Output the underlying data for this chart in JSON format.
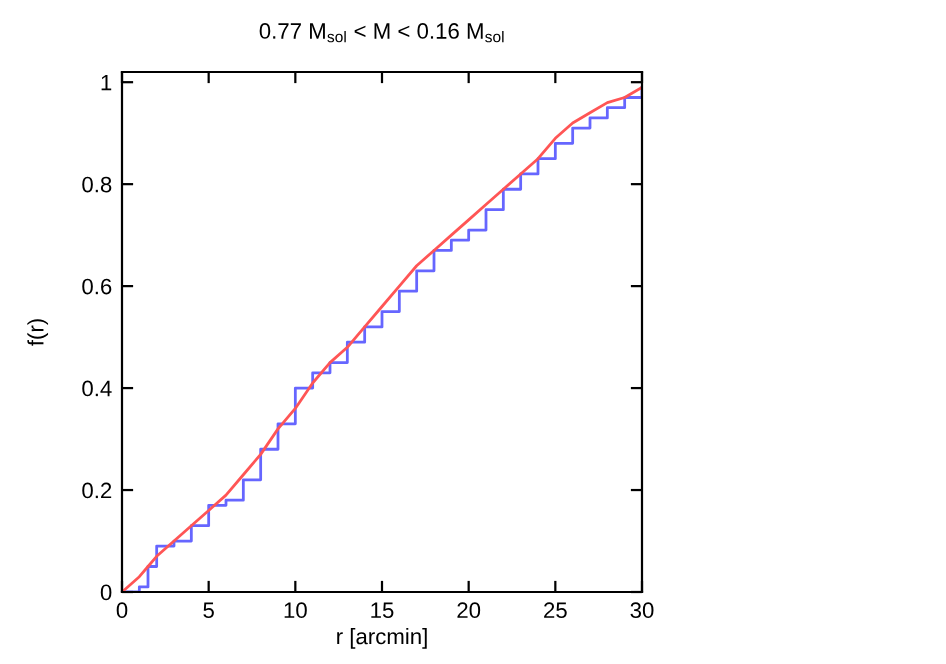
{
  "chart_data": {
    "type": "line",
    "title": "0.77 M$_{sol}$ < M < 0.16 M$_{sol}$",
    "xlabel": "r [arcmin]",
    "ylabel": "f(r)",
    "x": [
      0,
      1,
      1.5,
      2,
      3,
      4,
      5,
      6,
      7,
      8,
      9,
      10,
      11,
      12,
      13,
      14,
      15,
      16,
      17,
      18,
      19,
      20,
      21,
      22,
      23,
      24,
      25,
      26,
      27,
      28,
      29,
      30
    ],
    "series": [
      {
        "type": "step",
        "color": "#6666ff",
        "values": [
          0,
          0.01,
          0.05,
          0.09,
          0.1,
          0.13,
          0.17,
          0.18,
          0.22,
          0.28,
          0.33,
          0.4,
          0.43,
          0.45,
          0.49,
          0.52,
          0.55,
          0.59,
          0.63,
          0.67,
          0.69,
          0.71,
          0.75,
          0.79,
          0.82,
          0.85,
          0.88,
          0.91,
          0.93,
          0.95,
          0.97,
          0.99
        ]
      },
      {
        "color": "#ff5555",
        "values": [
          0,
          0.03,
          0.05,
          0.07,
          0.1,
          0.13,
          0.16,
          0.19,
          0.23,
          0.27,
          0.32,
          0.36,
          0.41,
          0.45,
          0.48,
          0.52,
          0.56,
          0.6,
          0.64,
          0.67,
          0.7,
          0.73,
          0.76,
          0.79,
          0.82,
          0.85,
          0.89,
          0.92,
          0.94,
          0.96,
          0.97,
          0.99
        ]
      }
    ],
    "xlim": [
      0,
      30
    ],
    "ylim": [
      0,
      1.02
    ],
    "xticks": [
      0,
      5,
      10,
      15,
      20,
      25,
      30
    ],
    "yticks": [
      0,
      0.2,
      0.4,
      0.6,
      0.8,
      1
    ],
    "grid": false,
    "legend": false
  }
}
